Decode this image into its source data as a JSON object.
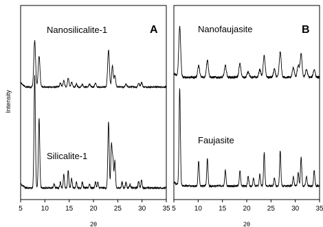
{
  "chart_data": [
    {
      "type": "line",
      "panel": "A",
      "title": "",
      "xlabel": "2θ",
      "ylabel": "Intensity",
      "xlim": [
        5,
        35
      ],
      "xticks": [
        5,
        10,
        15,
        20,
        25,
        30,
        35
      ],
      "grid": false,
      "series": [
        {
          "name": "Nanosilicalite-1",
          "baseline": 0.58,
          "noise": 0.004,
          "peaks": [
            {
              "x": 7.9,
              "h": 0.24,
              "w": 0.18
            },
            {
              "x": 8.8,
              "h": 0.16,
              "w": 0.18
            },
            {
              "x": 13.2,
              "h": 0.02,
              "w": 0.15
            },
            {
              "x": 13.9,
              "h": 0.035,
              "w": 0.15
            },
            {
              "x": 14.8,
              "h": 0.045,
              "w": 0.15
            },
            {
              "x": 15.5,
              "h": 0.025,
              "w": 0.15
            },
            {
              "x": 16.5,
              "h": 0.015,
              "w": 0.15
            },
            {
              "x": 17.7,
              "h": 0.015,
              "w": 0.15
            },
            {
              "x": 19.2,
              "h": 0.015,
              "w": 0.15
            },
            {
              "x": 20.4,
              "h": 0.02,
              "w": 0.15
            },
            {
              "x": 23.1,
              "h": 0.19,
              "w": 0.18
            },
            {
              "x": 23.9,
              "h": 0.11,
              "w": 0.16
            },
            {
              "x": 24.4,
              "h": 0.06,
              "w": 0.16
            },
            {
              "x": 26.7,
              "h": 0.015,
              "w": 0.15
            },
            {
              "x": 29.3,
              "h": 0.02,
              "w": 0.15
            },
            {
              "x": 29.9,
              "h": 0.025,
              "w": 0.15
            }
          ]
        },
        {
          "name": "Silicalite-1",
          "baseline": 0.06,
          "noise": 0.005,
          "peaks": [
            {
              "x": 7.9,
              "h": 0.58,
              "w": 0.14
            },
            {
              "x": 8.8,
              "h": 0.36,
              "w": 0.14
            },
            {
              "x": 11.9,
              "h": 0.02,
              "w": 0.12
            },
            {
              "x": 13.2,
              "h": 0.03,
              "w": 0.12
            },
            {
              "x": 13.9,
              "h": 0.07,
              "w": 0.12
            },
            {
              "x": 14.8,
              "h": 0.09,
              "w": 0.12
            },
            {
              "x": 15.5,
              "h": 0.05,
              "w": 0.12
            },
            {
              "x": 16.5,
              "h": 0.03,
              "w": 0.12
            },
            {
              "x": 17.7,
              "h": 0.03,
              "w": 0.12
            },
            {
              "x": 19.2,
              "h": 0.02,
              "w": 0.12
            },
            {
              "x": 20.4,
              "h": 0.03,
              "w": 0.12
            },
            {
              "x": 20.9,
              "h": 0.03,
              "w": 0.12
            },
            {
              "x": 23.1,
              "h": 0.34,
              "w": 0.14
            },
            {
              "x": 23.7,
              "h": 0.22,
              "w": 0.13
            },
            {
              "x": 24.0,
              "h": 0.15,
              "w": 0.13
            },
            {
              "x": 24.4,
              "h": 0.14,
              "w": 0.13
            },
            {
              "x": 25.9,
              "h": 0.03,
              "w": 0.12
            },
            {
              "x": 26.7,
              "h": 0.03,
              "w": 0.12
            },
            {
              "x": 27.5,
              "h": 0.02,
              "w": 0.12
            },
            {
              "x": 29.3,
              "h": 0.035,
              "w": 0.12
            },
            {
              "x": 29.9,
              "h": 0.04,
              "w": 0.12
            }
          ]
        }
      ]
    },
    {
      "type": "line",
      "panel": "B",
      "title": "",
      "xlabel": "2θ",
      "ylabel": "",
      "xlim": [
        5,
        35
      ],
      "xticks": [
        5,
        10,
        15,
        20,
        25,
        30,
        35
      ],
      "grid": false,
      "series": [
        {
          "name": "Nanofaujasite",
          "baseline": 0.63,
          "noise": 0.006,
          "peaks": [
            {
              "x": 6.2,
              "h": 0.26,
              "w": 0.2
            },
            {
              "x": 10.1,
              "h": 0.06,
              "w": 0.2
            },
            {
              "x": 11.9,
              "h": 0.09,
              "w": 0.2
            },
            {
              "x": 15.6,
              "h": 0.06,
              "w": 0.2
            },
            {
              "x": 18.6,
              "h": 0.07,
              "w": 0.2
            },
            {
              "x": 20.3,
              "h": 0.03,
              "w": 0.2
            },
            {
              "x": 22.7,
              "h": 0.04,
              "w": 0.2
            },
            {
              "x": 23.6,
              "h": 0.11,
              "w": 0.2
            },
            {
              "x": 25.7,
              "h": 0.04,
              "w": 0.2
            },
            {
              "x": 26.9,
              "h": 0.13,
              "w": 0.2
            },
            {
              "x": 29.6,
              "h": 0.05,
              "w": 0.2
            },
            {
              "x": 30.6,
              "h": 0.06,
              "w": 0.2
            },
            {
              "x": 31.2,
              "h": 0.12,
              "w": 0.2
            },
            {
              "x": 32.3,
              "h": 0.04,
              "w": 0.2
            },
            {
              "x": 33.9,
              "h": 0.04,
              "w": 0.2
            }
          ]
        },
        {
          "name": "Faujasite",
          "baseline": 0.07,
          "noise": 0.005,
          "peaks": [
            {
              "x": 6.2,
              "h": 0.5,
              "w": 0.14
            },
            {
              "x": 10.1,
              "h": 0.13,
              "w": 0.13
            },
            {
              "x": 11.9,
              "h": 0.14,
              "w": 0.13
            },
            {
              "x": 15.6,
              "h": 0.08,
              "w": 0.13
            },
            {
              "x": 18.6,
              "h": 0.08,
              "w": 0.13
            },
            {
              "x": 20.3,
              "h": 0.05,
              "w": 0.13
            },
            {
              "x": 21.4,
              "h": 0.04,
              "w": 0.13
            },
            {
              "x": 22.7,
              "h": 0.06,
              "w": 0.13
            },
            {
              "x": 23.6,
              "h": 0.17,
              "w": 0.13
            },
            {
              "x": 25.7,
              "h": 0.04,
              "w": 0.13
            },
            {
              "x": 26.9,
              "h": 0.18,
              "w": 0.13
            },
            {
              "x": 29.6,
              "h": 0.05,
              "w": 0.13
            },
            {
              "x": 30.6,
              "h": 0.07,
              "w": 0.13
            },
            {
              "x": 31.2,
              "h": 0.15,
              "w": 0.13
            },
            {
              "x": 32.3,
              "h": 0.05,
              "w": 0.13
            },
            {
              "x": 33.9,
              "h": 0.08,
              "w": 0.13
            }
          ]
        }
      ]
    }
  ]
}
